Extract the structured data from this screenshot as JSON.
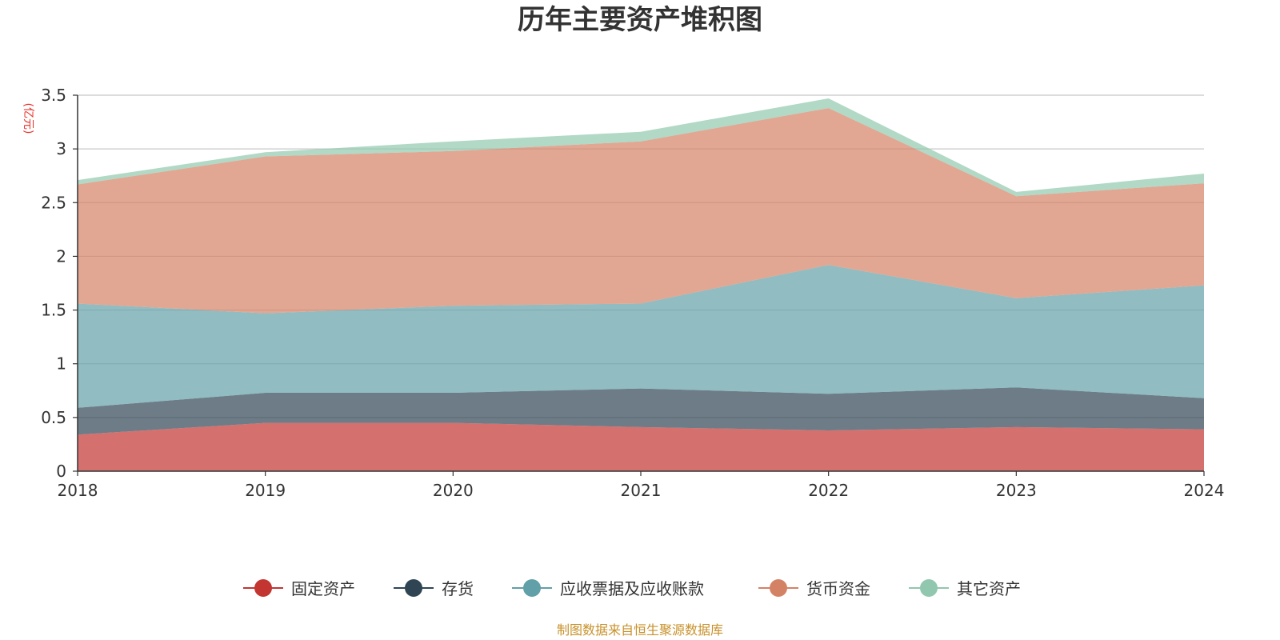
{
  "chart_data": {
    "type": "area",
    "stacked": true,
    "title": "历年主要资产堆积图",
    "unit_label": "(亿元)",
    "x": [
      "2018",
      "2019",
      "2020",
      "2021",
      "2022",
      "2023",
      "2024"
    ],
    "yticks": [
      "0",
      "0.5",
      "1",
      "1.5",
      "2",
      "2.5",
      "3",
      "3.5"
    ],
    "ylim": [
      0,
      3.5
    ],
    "grid": true,
    "legend_position": "bottom",
    "series": [
      {
        "name": "固定资产",
        "color": "#c23531",
        "values": [
          0.34,
          0.45,
          0.45,
          0.41,
          0.38,
          0.41,
          0.39
        ]
      },
      {
        "name": "存货",
        "color": "#2f4554",
        "values": [
          0.25,
          0.28,
          0.28,
          0.36,
          0.34,
          0.37,
          0.29
        ]
      },
      {
        "name": "应收票据及应收账款",
        "color": "#61a0a8",
        "values": [
          0.97,
          0.74,
          0.81,
          0.79,
          1.2,
          0.83,
          1.05
        ]
      },
      {
        "name": "货币资金",
        "color": "#d48265",
        "values": [
          1.11,
          1.46,
          1.44,
          1.51,
          1.46,
          0.95,
          0.95
        ]
      },
      {
        "name": "其它资产",
        "color": "#91c7ae",
        "values": [
          0.04,
          0.04,
          0.09,
          0.09,
          0.09,
          0.04,
          0.09
        ]
      }
    ]
  },
  "source_text": "制图数据来自恒生聚源数据库",
  "colors": {
    "unit": "#e8332a",
    "source": "#c8912a",
    "grid": "#c8c8c8",
    "axis": "#333333"
  }
}
